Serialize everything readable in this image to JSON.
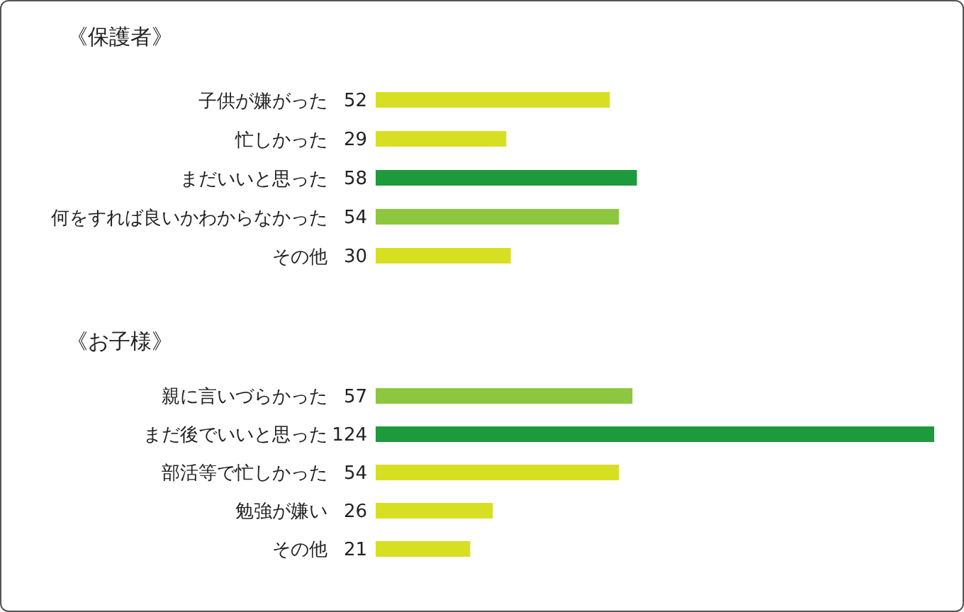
{
  "chart_data": [
    {
      "type": "bar",
      "orientation": "horizontal",
      "title": "《保護者》",
      "categories": [
        "子供が嫌がった",
        "忙しかった",
        "まだいいと思った",
        "何をすれば良いかわからなかった",
        "その他"
      ],
      "values": [
        52,
        29,
        58,
        54,
        30
      ],
      "colors": [
        "#d7df23",
        "#d7df23",
        "#1e9a3c",
        "#8dc63f",
        "#d7df23"
      ],
      "data_labels": true
    },
    {
      "type": "bar",
      "orientation": "horizontal",
      "title": "《お子様》",
      "categories": [
        "親に言いづらかった",
        "まだ後でいいと思った",
        "部活等で忙しかった",
        "勉強が嫌い",
        "その他"
      ],
      "values": [
        57,
        124,
        54,
        26,
        21
      ],
      "colors": [
        "#8dc63f",
        "#1e9a3c",
        "#d7df23",
        "#d7df23",
        "#d7df23"
      ],
      "data_labels": true
    }
  ]
}
